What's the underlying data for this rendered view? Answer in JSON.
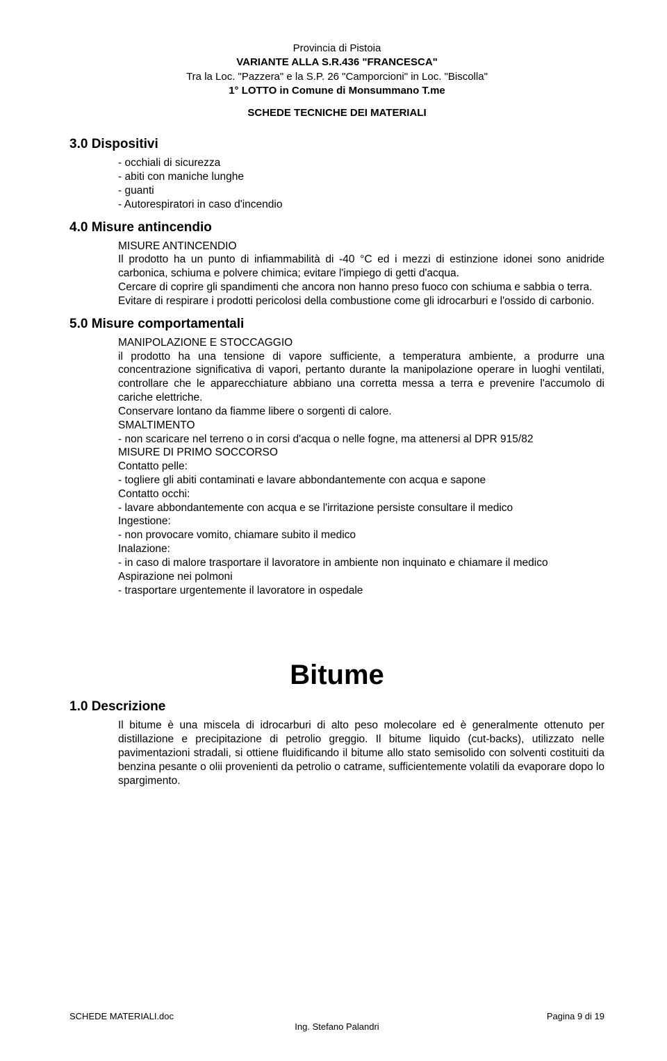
{
  "header": {
    "line1": "Provincia di Pistoia",
    "line2": "VARIANTE ALLA S.R.436 \"FRANCESCA\"",
    "line3": "Tra la Loc. \"Pazzera\" e la S.P. 26 \"Camporcioni\" in Loc. \"Biscolla\"",
    "line4": "1° LOTTO in Comune di Monsummano T.me",
    "line5": "SCHEDE TECNICHE DEI MATERIALI"
  },
  "s3": {
    "title": "3.0 Dispositivi",
    "items": [
      "- occhiali di sicurezza",
      "- abiti con maniche lunghe",
      "- guanti",
      "- Autorespiratori in caso d'incendio"
    ]
  },
  "s4": {
    "title": "4.0 Misure antincendio",
    "sub": "MISURE ANTINCENDIO",
    "p1": "Il prodotto ha un punto di infiammabilità di -40 °C ed i mezzi di estinzione idonei sono anidride carbonica, schiuma e polvere chimica; evitare l'impiego di getti d'acqua.",
    "p2": "Cercare di coprire gli spandimenti che ancora non hanno preso fuoco con schiuma e sabbia o terra.",
    "p3": "Evitare di respirare i  prodotti pericolosi della combustione come gli idrocarburi e l'ossido di carbonio."
  },
  "s5": {
    "title": "5.0 Misure comportamentali",
    "g1": {
      "sub": "MANIPOLAZIONE E STOCCAGGIO",
      "p1": "il prodotto ha una tensione di vapore sufficiente, a temperatura ambiente, a produrre una concentrazione significativa di vapori, pertanto durante la manipolazione operare in luoghi ventilati, controllare che le apparecchiature abbiano una corretta messa a terra e  prevenire l'accumolo di cariche elettriche.",
      "p2": "Conservare lontano da fiamme libere o sorgenti di calore."
    },
    "g2": {
      "sub": "SMALTIMENTO",
      "p1": "- non scaricare nel terreno o  in corsi d'acqua o nelle fogne, ma attenersi al DPR 915/82"
    },
    "g3": {
      "sub": "MISURE DI PRIMO SOCCORSO",
      "l1": "Contatto pelle:",
      "l2": "- togliere gli abiti contaminati e lavare abbondantemente con acqua e sapone",
      "l3": "Contatto occhi:",
      "l4": "- lavare abbondantemente con acqua e se l'irritazione persiste consultare il medico",
      "l5": "Ingestione:",
      "l6": "- non provocare vomito, chiamare subito il medico",
      "l7": "Inalazione:",
      "l8": "- in caso di malore trasportare il lavoratore in ambiente non inquinato e chiamare il medico",
      "l9": "Aspirazione nei polmoni",
      "l10": "- trasportare urgentemente il lavoratore in ospedale"
    }
  },
  "bitume": {
    "big": "Bitume",
    "desc_title": "1.0 Descrizione",
    "p1": "Il bitume è una miscela di idrocarburi di alto peso molecolare ed è generalmente ottenuto per distillazione e precipitazione di petrolio greggio. Il bitume liquido (cut-backs), utilizzato nelle pavimentazioni stradali, si ottiene fluidificando il bitume allo stato semisolido con solventi costituiti da benzina pesante o olii provenienti da petrolio o catrame, sufficientemente volatili da evaporare dopo lo spargimento."
  },
  "footer": {
    "left": "SCHEDE MATERIALI.doc",
    "right": "Pagina 9 di 19",
    "center": "Ing. Stefano Palandri"
  }
}
